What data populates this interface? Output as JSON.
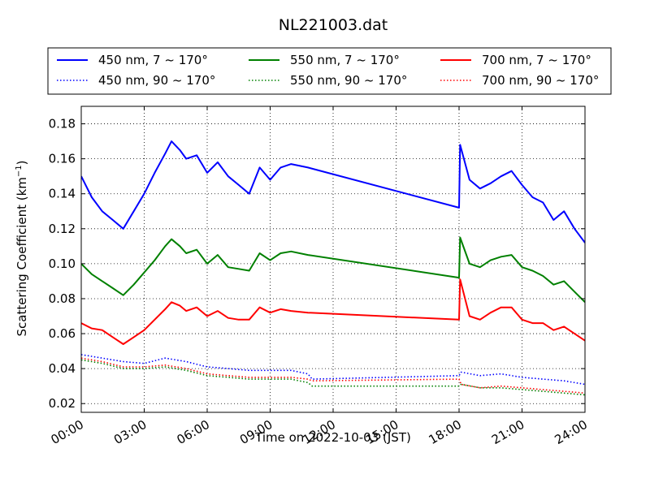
{
  "chart_data": {
    "type": "line",
    "title": "NL221003.dat",
    "xlabel": "Time on 2022-10-03 (JST)",
    "ylabel_main": "Scattering Coefficient (km",
    "ylabel_sup": "−1",
    "ylabel_end": ")",
    "x_unit": "hours",
    "xlim": [
      0,
      24
    ],
    "ylim": [
      0.015,
      0.19
    ],
    "x_ticks": [
      0,
      3,
      6,
      9,
      12,
      15,
      18,
      21,
      24
    ],
    "x_tick_labels": [
      "00:00",
      "03:00",
      "06:00",
      "09:00",
      "12:00",
      "15:00",
      "18:00",
      "21:00",
      "24:00"
    ],
    "y_ticks": [
      0.02,
      0.04,
      0.06,
      0.08,
      0.1,
      0.12,
      0.14,
      0.16,
      0.18
    ],
    "y_tick_labels": [
      "0.02",
      "0.04",
      "0.06",
      "0.08",
      "0.10",
      "0.12",
      "0.14",
      "0.16",
      "0.18"
    ],
    "grid": true,
    "legend": {
      "placement": "above-plot",
      "columns": 3
    },
    "series": [
      {
        "name": "450 nm, 7 ~ 170°",
        "color": "#0000ff",
        "style": "solid",
        "points": [
          [
            0,
            0.15
          ],
          [
            0.5,
            0.138
          ],
          [
            1,
            0.13
          ],
          [
            1.5,
            0.125
          ],
          [
            2,
            0.12
          ],
          [
            2.5,
            0.13
          ],
          [
            3,
            0.14
          ],
          [
            3.5,
            0.152
          ],
          [
            4,
            0.163
          ],
          [
            4.3,
            0.17
          ],
          [
            4.7,
            0.165
          ],
          [
            5,
            0.16
          ],
          [
            5.5,
            0.162
          ],
          [
            6,
            0.152
          ],
          [
            6.5,
            0.158
          ],
          [
            7,
            0.15
          ],
          [
            7.5,
            0.145
          ],
          [
            8,
            0.14
          ],
          [
            8.5,
            0.155
          ],
          [
            9,
            0.148
          ],
          [
            9.5,
            0.155
          ],
          [
            10,
            0.157
          ],
          [
            10.8,
            0.155
          ],
          [
            18,
            0.132
          ],
          [
            18.05,
            0.168
          ],
          [
            18.5,
            0.148
          ],
          [
            19,
            0.143
          ],
          [
            19.5,
            0.146
          ],
          [
            20,
            0.15
          ],
          [
            20.5,
            0.153
          ],
          [
            21,
            0.145
          ],
          [
            21.5,
            0.138
          ],
          [
            22,
            0.135
          ],
          [
            22.5,
            0.125
          ],
          [
            23,
            0.13
          ],
          [
            23.5,
            0.12
          ],
          [
            24,
            0.112
          ]
        ]
      },
      {
        "name": "450 nm, 90 ~ 170°",
        "color": "#0000ff",
        "style": "dotted",
        "points": [
          [
            0,
            0.048
          ],
          [
            1,
            0.046
          ],
          [
            2,
            0.044
          ],
          [
            3,
            0.043
          ],
          [
            4,
            0.046
          ],
          [
            5,
            0.044
          ],
          [
            6,
            0.041
          ],
          [
            7,
            0.04
          ],
          [
            8,
            0.039
          ],
          [
            9,
            0.039
          ],
          [
            10,
            0.039
          ],
          [
            10.8,
            0.037
          ],
          [
            11,
            0.034
          ],
          [
            18,
            0.036
          ],
          [
            18.1,
            0.038
          ],
          [
            19,
            0.036
          ],
          [
            20,
            0.037
          ],
          [
            21,
            0.035
          ],
          [
            22,
            0.034
          ],
          [
            23,
            0.033
          ],
          [
            24,
            0.031
          ]
        ]
      },
      {
        "name": "550 nm, 7 ~ 170°",
        "color": "#008000",
        "style": "solid",
        "points": [
          [
            0,
            0.1
          ],
          [
            0.5,
            0.094
          ],
          [
            1,
            0.09
          ],
          [
            1.5,
            0.086
          ],
          [
            2,
            0.082
          ],
          [
            2.5,
            0.088
          ],
          [
            3,
            0.095
          ],
          [
            3.5,
            0.102
          ],
          [
            4,
            0.11
          ],
          [
            4.3,
            0.114
          ],
          [
            4.7,
            0.11
          ],
          [
            5,
            0.106
          ],
          [
            5.5,
            0.108
          ],
          [
            6,
            0.1
          ],
          [
            6.5,
            0.105
          ],
          [
            7,
            0.098
          ],
          [
            7.5,
            0.097
          ],
          [
            8,
            0.096
          ],
          [
            8.5,
            0.106
          ],
          [
            9,
            0.102
          ],
          [
            9.5,
            0.106
          ],
          [
            10,
            0.107
          ],
          [
            10.8,
            0.105
          ],
          [
            18,
            0.092
          ],
          [
            18.05,
            0.115
          ],
          [
            18.5,
            0.1
          ],
          [
            19,
            0.098
          ],
          [
            19.5,
            0.102
          ],
          [
            20,
            0.104
          ],
          [
            20.5,
            0.105
          ],
          [
            21,
            0.098
          ],
          [
            21.5,
            0.096
          ],
          [
            22,
            0.093
          ],
          [
            22.5,
            0.088
          ],
          [
            23,
            0.09
          ],
          [
            23.5,
            0.084
          ],
          [
            24,
            0.078
          ]
        ]
      },
      {
        "name": "550 nm, 90 ~ 170°",
        "color": "#008000",
        "style": "dotted",
        "points": [
          [
            0,
            0.045
          ],
          [
            1,
            0.043
          ],
          [
            2,
            0.04
          ],
          [
            3,
            0.04
          ],
          [
            4,
            0.041
          ],
          [
            5,
            0.039
          ],
          [
            6,
            0.036
          ],
          [
            7,
            0.035
          ],
          [
            8,
            0.034
          ],
          [
            9,
            0.034
          ],
          [
            10,
            0.034
          ],
          [
            10.8,
            0.032
          ],
          [
            11,
            0.03
          ],
          [
            18,
            0.03
          ],
          [
            18.1,
            0.031
          ],
          [
            19,
            0.029
          ],
          [
            20,
            0.029
          ],
          [
            21,
            0.028
          ],
          [
            22,
            0.027
          ],
          [
            23,
            0.026
          ],
          [
            24,
            0.025
          ]
        ]
      },
      {
        "name": "700 nm, 7 ~ 170°",
        "color": "#ff0000",
        "style": "solid",
        "points": [
          [
            0,
            0.066
          ],
          [
            0.5,
            0.063
          ],
          [
            1,
            0.062
          ],
          [
            1.5,
            0.058
          ],
          [
            2,
            0.054
          ],
          [
            2.5,
            0.058
          ],
          [
            3,
            0.062
          ],
          [
            3.5,
            0.068
          ],
          [
            4,
            0.074
          ],
          [
            4.3,
            0.078
          ],
          [
            4.7,
            0.076
          ],
          [
            5,
            0.073
          ],
          [
            5.5,
            0.075
          ],
          [
            6,
            0.07
          ],
          [
            6.5,
            0.073
          ],
          [
            7,
            0.069
          ],
          [
            7.5,
            0.068
          ],
          [
            8,
            0.068
          ],
          [
            8.5,
            0.075
          ],
          [
            9,
            0.072
          ],
          [
            9.5,
            0.074
          ],
          [
            10,
            0.073
          ],
          [
            10.8,
            0.072
          ],
          [
            18,
            0.068
          ],
          [
            18.05,
            0.091
          ],
          [
            18.5,
            0.07
          ],
          [
            19,
            0.068
          ],
          [
            19.5,
            0.072
          ],
          [
            20,
            0.075
          ],
          [
            20.5,
            0.075
          ],
          [
            21,
            0.068
          ],
          [
            21.5,
            0.066
          ],
          [
            22,
            0.066
          ],
          [
            22.5,
            0.062
          ],
          [
            23,
            0.064
          ],
          [
            23.5,
            0.06
          ],
          [
            24,
            0.056
          ]
        ]
      },
      {
        "name": "700 nm, 90 ~ 170°",
        "color": "#ff0000",
        "style": "dotted",
        "points": [
          [
            0,
            0.046
          ],
          [
            1,
            0.044
          ],
          [
            2,
            0.041
          ],
          [
            3,
            0.041
          ],
          [
            4,
            0.042
          ],
          [
            5,
            0.04
          ],
          [
            6,
            0.037
          ],
          [
            7,
            0.036
          ],
          [
            8,
            0.035
          ],
          [
            9,
            0.035
          ],
          [
            10,
            0.035
          ],
          [
            10.8,
            0.034
          ],
          [
            11,
            0.033
          ],
          [
            18,
            0.034
          ],
          [
            18.1,
            0.031
          ],
          [
            19,
            0.029
          ],
          [
            20,
            0.03
          ],
          [
            21,
            0.029
          ],
          [
            22,
            0.028
          ],
          [
            23,
            0.027
          ],
          [
            24,
            0.026
          ]
        ]
      }
    ]
  }
}
